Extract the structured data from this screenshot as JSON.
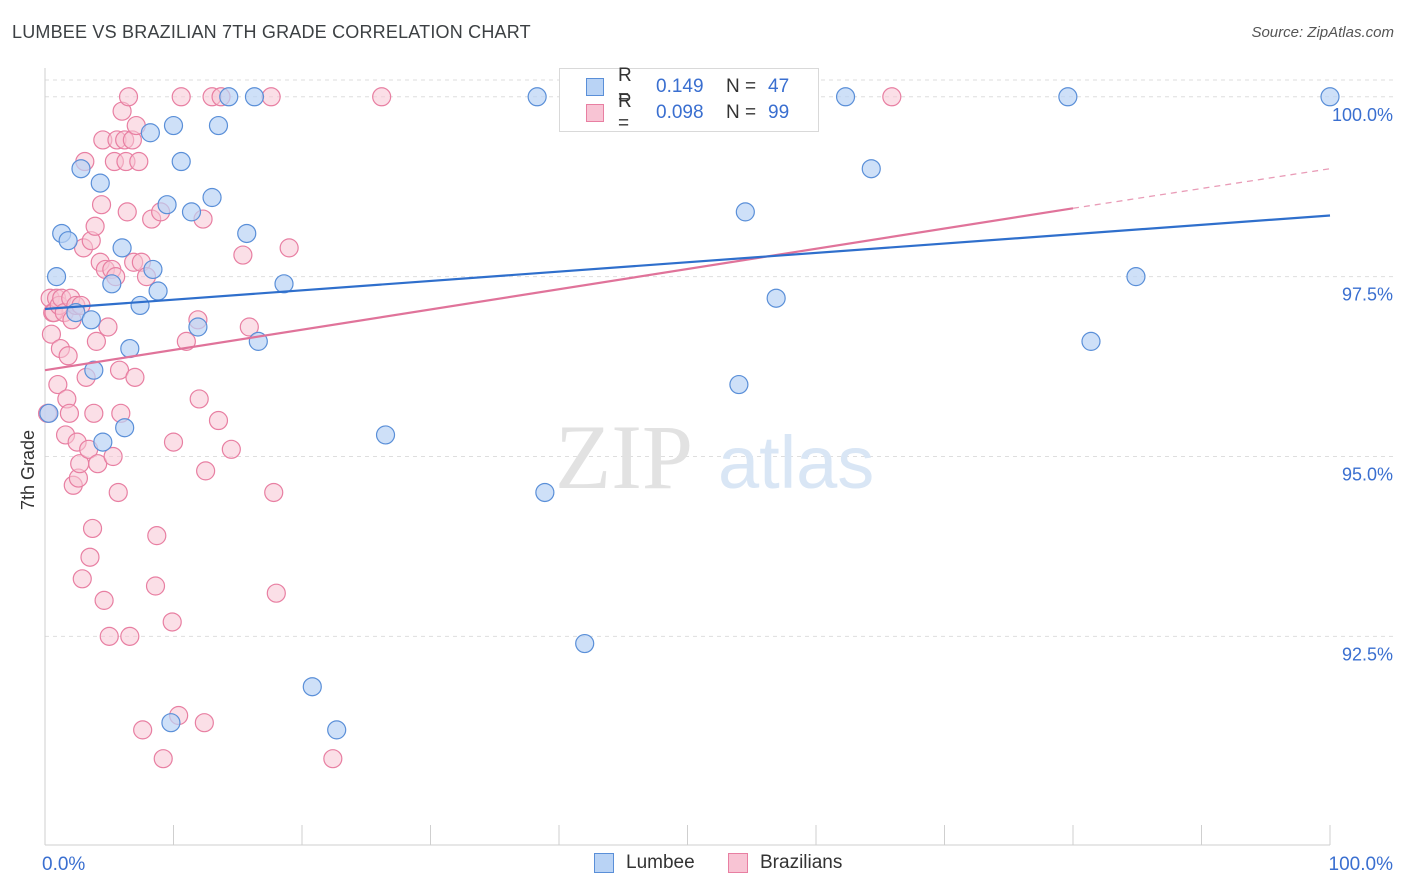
{
  "title": "LUMBEE VS BRAZILIAN 7TH GRADE CORRELATION CHART",
  "source": "Source: ZipAtlas.com",
  "watermark": {
    "zip": "ZIP",
    "atlas": "atlas"
  },
  "legend": {
    "rows": [
      {
        "r_label": "R =",
        "r_value": "0.149",
        "n_label": "N =",
        "n_value": "47"
      },
      {
        "r_label": "R =",
        "r_value": "0.098",
        "n_label": "N =",
        "n_value": "99"
      }
    ]
  },
  "bottom_legend": [
    "Lumbee",
    "Brazilians"
  ],
  "colors": {
    "lumbee_fill": "#b9d3f5",
    "lumbee_stroke": "#5a8fd8",
    "lumbee_line": "#2f6fcc",
    "braz_fill": "#f8c4d4",
    "braz_stroke": "#e87fa2",
    "braz_line": "#e0739a",
    "tick_label": "#3a6fd0",
    "grid": "#dedede"
  },
  "chart_data": {
    "type": "scatter",
    "title": "LUMBEE VS BRAZILIAN 7TH GRADE CORRELATION CHART",
    "ylabel": "7th Grade",
    "xlabel": "",
    "xlim": [
      0,
      100
    ],
    "ylim": [
      89.6,
      100.4
    ],
    "x_ticks": [
      "0.0%",
      "100.0%"
    ],
    "y_ticks": [
      {
        "value": 92.5,
        "label": "92.5%"
      },
      {
        "value": 95.0,
        "label": "95.0%"
      },
      {
        "value": 97.5,
        "label": "97.5%"
      },
      {
        "value": 100.0,
        "label": "100.0%"
      }
    ],
    "grid": true,
    "series": [
      {
        "name": "Lumbee",
        "r": 0.149,
        "n": 47,
        "trend": {
          "x0": 0,
          "y0": 97.05,
          "x1": 100,
          "y1": 98.35
        },
        "points": [
          [
            0.3,
            95.6
          ],
          [
            0.9,
            97.5
          ],
          [
            1.3,
            98.1
          ],
          [
            1.8,
            98.0
          ],
          [
            2.4,
            97.0
          ],
          [
            2.8,
            99.0
          ],
          [
            3.6,
            96.9
          ],
          [
            3.8,
            96.2
          ],
          [
            4.3,
            98.8
          ],
          [
            4.5,
            95.2
          ],
          [
            5.2,
            97.4
          ],
          [
            6.0,
            97.9
          ],
          [
            6.2,
            95.4
          ],
          [
            6.6,
            96.5
          ],
          [
            7.4,
            97.1
          ],
          [
            8.2,
            99.5
          ],
          [
            8.4,
            97.6
          ],
          [
            8.8,
            97.3
          ],
          [
            9.5,
            98.5
          ],
          [
            9.8,
            91.3
          ],
          [
            10.0,
            99.6
          ],
          [
            10.6,
            99.1
          ],
          [
            11.4,
            98.4
          ],
          [
            11.9,
            96.8
          ],
          [
            13.0,
            98.6
          ],
          [
            13.5,
            99.6
          ],
          [
            14.3,
            100.0
          ],
          [
            15.7,
            98.1
          ],
          [
            16.3,
            100.0
          ],
          [
            16.6,
            96.6
          ],
          [
            18.6,
            97.4
          ],
          [
            20.8,
            91.8
          ],
          [
            22.7,
            91.2
          ],
          [
            26.5,
            95.3
          ],
          [
            38.3,
            100.0
          ],
          [
            38.9,
            94.5
          ],
          [
            42.0,
            92.4
          ],
          [
            54.0,
            96.0
          ],
          [
            54.5,
            98.4
          ],
          [
            56.9,
            97.2
          ],
          [
            62.3,
            100.0
          ],
          [
            64.3,
            99.0
          ],
          [
            79.6,
            100.0
          ],
          [
            81.4,
            96.6
          ],
          [
            84.9,
            97.5
          ],
          [
            100.0,
            100.0
          ]
        ]
      },
      {
        "name": "Brazilians",
        "r": 0.098,
        "n": 99,
        "trend": {
          "x0": 0,
          "y0": 96.2,
          "x1": 80,
          "y1": 98.45
        },
        "trend_dashed": {
          "x0": 80,
          "y0": 98.45,
          "x1": 100,
          "y1": 99.0
        },
        "points": [
          [
            0.2,
            95.6
          ],
          [
            0.4,
            97.2
          ],
          [
            0.5,
            96.7
          ],
          [
            0.6,
            97.0
          ],
          [
            0.7,
            97.0
          ],
          [
            0.9,
            97.2
          ],
          [
            1.0,
            96.0
          ],
          [
            1.1,
            97.1
          ],
          [
            1.2,
            96.5
          ],
          [
            1.3,
            97.2
          ],
          [
            1.5,
            97.0
          ],
          [
            1.6,
            95.3
          ],
          [
            1.7,
            95.8
          ],
          [
            1.8,
            96.4
          ],
          [
            1.9,
            95.6
          ],
          [
            2.0,
            97.2
          ],
          [
            2.1,
            96.9
          ],
          [
            2.2,
            94.6
          ],
          [
            2.4,
            97.1
          ],
          [
            2.5,
            95.2
          ],
          [
            2.6,
            94.7
          ],
          [
            2.7,
            94.9
          ],
          [
            2.8,
            97.1
          ],
          [
            2.9,
            93.3
          ],
          [
            3.0,
            97.9
          ],
          [
            3.1,
            99.1
          ],
          [
            3.2,
            96.1
          ],
          [
            3.4,
            95.1
          ],
          [
            3.5,
            93.6
          ],
          [
            3.6,
            98.0
          ],
          [
            3.7,
            94.0
          ],
          [
            3.8,
            95.6
          ],
          [
            3.9,
            98.2
          ],
          [
            4.0,
            96.6
          ],
          [
            4.1,
            94.9
          ],
          [
            4.3,
            97.7
          ],
          [
            4.4,
            98.5
          ],
          [
            4.5,
            99.4
          ],
          [
            4.6,
            93.0
          ],
          [
            4.7,
            97.6
          ],
          [
            4.9,
            96.8
          ],
          [
            5.0,
            92.5
          ],
          [
            5.2,
            97.6
          ],
          [
            5.3,
            95.0
          ],
          [
            5.4,
            99.1
          ],
          [
            5.5,
            97.5
          ],
          [
            5.6,
            99.4
          ],
          [
            5.7,
            94.5
          ],
          [
            5.8,
            96.2
          ],
          [
            5.9,
            95.6
          ],
          [
            6.0,
            99.8
          ],
          [
            6.2,
            99.4
          ],
          [
            6.3,
            99.1
          ],
          [
            6.4,
            98.4
          ],
          [
            6.5,
            100.0
          ],
          [
            6.6,
            92.5
          ],
          [
            6.8,
            99.4
          ],
          [
            6.9,
            97.7
          ],
          [
            7.0,
            96.1
          ],
          [
            7.1,
            99.6
          ],
          [
            7.3,
            99.1
          ],
          [
            7.5,
            97.7
          ],
          [
            7.6,
            91.2
          ],
          [
            7.9,
            97.5
          ],
          [
            8.3,
            98.3
          ],
          [
            8.6,
            93.2
          ],
          [
            8.7,
            93.9
          ],
          [
            9.0,
            98.4
          ],
          [
            9.2,
            90.8
          ],
          [
            9.9,
            92.7
          ],
          [
            10.0,
            95.2
          ],
          [
            10.4,
            91.4
          ],
          [
            10.6,
            100.0
          ],
          [
            11.0,
            96.6
          ],
          [
            11.9,
            96.9
          ],
          [
            12.0,
            95.8
          ],
          [
            12.3,
            98.3
          ],
          [
            12.4,
            91.3
          ],
          [
            12.5,
            94.8
          ],
          [
            13.0,
            100.0
          ],
          [
            13.5,
            95.5
          ],
          [
            13.7,
            100.0
          ],
          [
            14.5,
            95.1
          ],
          [
            15.4,
            97.8
          ],
          [
            15.9,
            96.8
          ],
          [
            17.6,
            100.0
          ],
          [
            17.8,
            94.5
          ],
          [
            18.0,
            93.1
          ],
          [
            19.0,
            97.9
          ],
          [
            22.4,
            90.8
          ],
          [
            26.2,
            100.0
          ],
          [
            65.9,
            100.0
          ]
        ]
      }
    ]
  }
}
